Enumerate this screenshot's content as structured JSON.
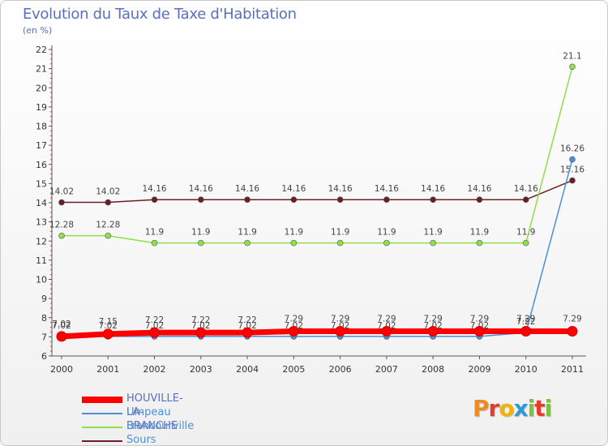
{
  "chart_data": {
    "type": "line",
    "title": "Evolution du Taux de Taxe d'Habitation",
    "subtitle": "(en %)",
    "x": [
      "2000",
      "2001",
      "2002",
      "2003",
      "2004",
      "2005",
      "2006",
      "2007",
      "2008",
      "2009",
      "2010",
      "2011"
    ],
    "ylim": [
      6,
      22
    ],
    "yticks": [
      6,
      7,
      8,
      9,
      10,
      11,
      12,
      13,
      14,
      15,
      16,
      17,
      18,
      19,
      20,
      21,
      22
    ],
    "grid": false,
    "series": [
      {
        "name": "Sours",
        "color": "#6b1f24",
        "values": [
          14.02,
          14.02,
          14.16,
          14.16,
          14.16,
          14.16,
          14.16,
          14.16,
          14.16,
          14.16,
          14.16,
          15.16
        ],
        "labels": [
          "14.02",
          "14.02",
          "14.16",
          "14.16",
          "14.16",
          "14.16",
          "14.16",
          "14.16",
          "14.16",
          "14.16",
          "14.16",
          "15.16"
        ]
      },
      {
        "name": "Francourville",
        "color": "#8ee04a",
        "values": [
          12.28,
          12.28,
          11.9,
          11.9,
          11.9,
          11.9,
          11.9,
          11.9,
          11.9,
          11.9,
          11.9,
          21.1
        ],
        "labels": [
          "12.28",
          "12.28",
          "11.9",
          "11.9",
          "11.9",
          "11.9",
          "11.9",
          "11.9",
          "11.9",
          "11.9",
          "11.9",
          "21.1"
        ]
      },
      {
        "name": "Umpeau",
        "color": "#4a90d9",
        "values": [
          7.02,
          7.02,
          7.02,
          7.02,
          7.02,
          7.02,
          7.02,
          7.02,
          7.02,
          7.02,
          7.22,
          16.26
        ],
        "labels": [
          "7.02",
          "7.02",
          "7.02",
          "7.02",
          "7.02",
          "7.02",
          "7.02",
          "7.02",
          "7.02",
          "7.02",
          "7.22",
          "16.26"
        ]
      },
      {
        "name": "HOUVILLE-LA-BRANCHE",
        "color": "#ff0000",
        "values": [
          7.02,
          7.15,
          7.22,
          7.22,
          7.22,
          7.29,
          7.29,
          7.29,
          7.29,
          7.29,
          7.29,
          7.29
        ],
        "labels": [
          "7.02",
          "7.15",
          "7.22",
          "7.22",
          "7.22",
          "7.29",
          "7.29",
          "7.29",
          "7.29",
          "7.29",
          "7.29",
          "7.29"
        ]
      }
    ],
    "legend": [
      "HOUVILLE-LA-BRANCHE",
      "Umpeau",
      "Francourville",
      "Sours"
    ]
  },
  "logo": {
    "text": [
      "P",
      "r",
      "o",
      "x",
      "i",
      "t",
      "i"
    ],
    "colors": [
      "#f08a24",
      "#e83a2a",
      "#f0b400",
      "#2e9bd6",
      "#7cc242",
      "#e83a2a",
      "#7cc242"
    ]
  }
}
